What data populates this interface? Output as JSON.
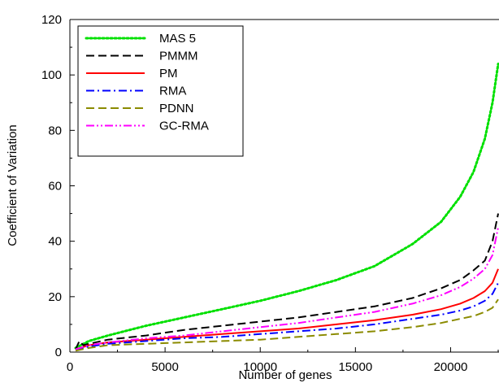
{
  "chart_data": {
    "type": "line",
    "xlabel": "Number of genes",
    "ylabel": "Coefficient of Variation",
    "xlim": [
      0,
      22500
    ],
    "ylim": [
      0,
      120
    ],
    "x_ticks": [
      "0",
      "5000",
      "10000",
      "15000",
      "20000"
    ],
    "x_tick_values": [
      0,
      5000,
      10000,
      15000,
      20000
    ],
    "y_ticks": [
      "0",
      "20",
      "40",
      "60",
      "80",
      "100",
      "120"
    ],
    "y_tick_values": [
      0,
      20,
      40,
      60,
      80,
      100,
      120
    ],
    "grid": false,
    "legend_position": "top-left",
    "series": [
      {
        "name": "MAS 5",
        "color": "#00e000",
        "style": "dotted",
        "x": [
          300,
          1000,
          2000,
          4000,
          6000,
          8000,
          10000,
          12000,
          14000,
          16000,
          18000,
          19500,
          20500,
          21200,
          21800,
          22200,
          22500
        ],
        "y": [
          1.5,
          4,
          6,
          9.5,
          12.5,
          15.5,
          18.5,
          22,
          26,
          31,
          39,
          47,
          56,
          65,
          77,
          90,
          104
        ]
      },
      {
        "name": "PMMM",
        "color": "#000000",
        "style": "dashed",
        "x": [
          300,
          500,
          700,
          1000,
          2000,
          4000,
          6000,
          8000,
          10000,
          12000,
          14000,
          16000,
          18000,
          19500,
          20500,
          21200,
          21800,
          22200,
          22500
        ],
        "y": [
          1,
          4,
          2.5,
          3,
          4.5,
          6,
          8,
          9.5,
          11,
          12.5,
          14.5,
          16.5,
          19.5,
          23,
          26,
          29.5,
          33,
          40,
          50
        ]
      },
      {
        "name": "PM",
        "color": "#ff0000",
        "style": "solid",
        "x": [
          300,
          1000,
          2000,
          4000,
          6000,
          8000,
          10000,
          12000,
          14000,
          16000,
          18000,
          19500,
          20500,
          21200,
          21800,
          22200,
          22500
        ],
        "y": [
          1,
          2.5,
          3.5,
          4.5,
          5.5,
          6.5,
          7.5,
          8.5,
          10,
          11.5,
          13.5,
          15.5,
          17.5,
          19.5,
          22,
          25,
          30
        ]
      },
      {
        "name": "RMA",
        "color": "#0000ff",
        "style": "dashdot",
        "x": [
          300,
          1000,
          2000,
          4000,
          6000,
          8000,
          10000,
          12000,
          14000,
          16000,
          18000,
          19500,
          20500,
          21200,
          21800,
          22200,
          22500
        ],
        "y": [
          1,
          2,
          3,
          4,
          5,
          5.5,
          6.5,
          7.5,
          8.5,
          10,
          12,
          13.5,
          15,
          16.5,
          18.5,
          21,
          25
        ]
      },
      {
        "name": "PDNN",
        "color": "#8b8b00",
        "style": "dashed",
        "x": [
          300,
          1000,
          2000,
          4000,
          6000,
          8000,
          10000,
          12000,
          14000,
          16000,
          18000,
          19500,
          20500,
          21200,
          21800,
          22200,
          22500
        ],
        "y": [
          0.5,
          1.5,
          2.5,
          3,
          3.5,
          4,
          4.5,
          5.5,
          6.5,
          7.5,
          9,
          10.5,
          12,
          13,
          14.5,
          16,
          19
        ]
      },
      {
        "name": "GC-RMA",
        "color": "#ff00ff",
        "style": "dashdotdot",
        "x": [
          300,
          1000,
          2000,
          4000,
          6000,
          8000,
          10000,
          12000,
          14000,
          16000,
          18000,
          19500,
          20500,
          21200,
          21800,
          22200,
          22500
        ],
        "y": [
          1,
          2.5,
          3.5,
          5,
          6,
          7.5,
          9,
          10.5,
          12.5,
          14.5,
          17.5,
          20.5,
          23.5,
          26.5,
          30,
          35,
          45
        ]
      }
    ]
  }
}
